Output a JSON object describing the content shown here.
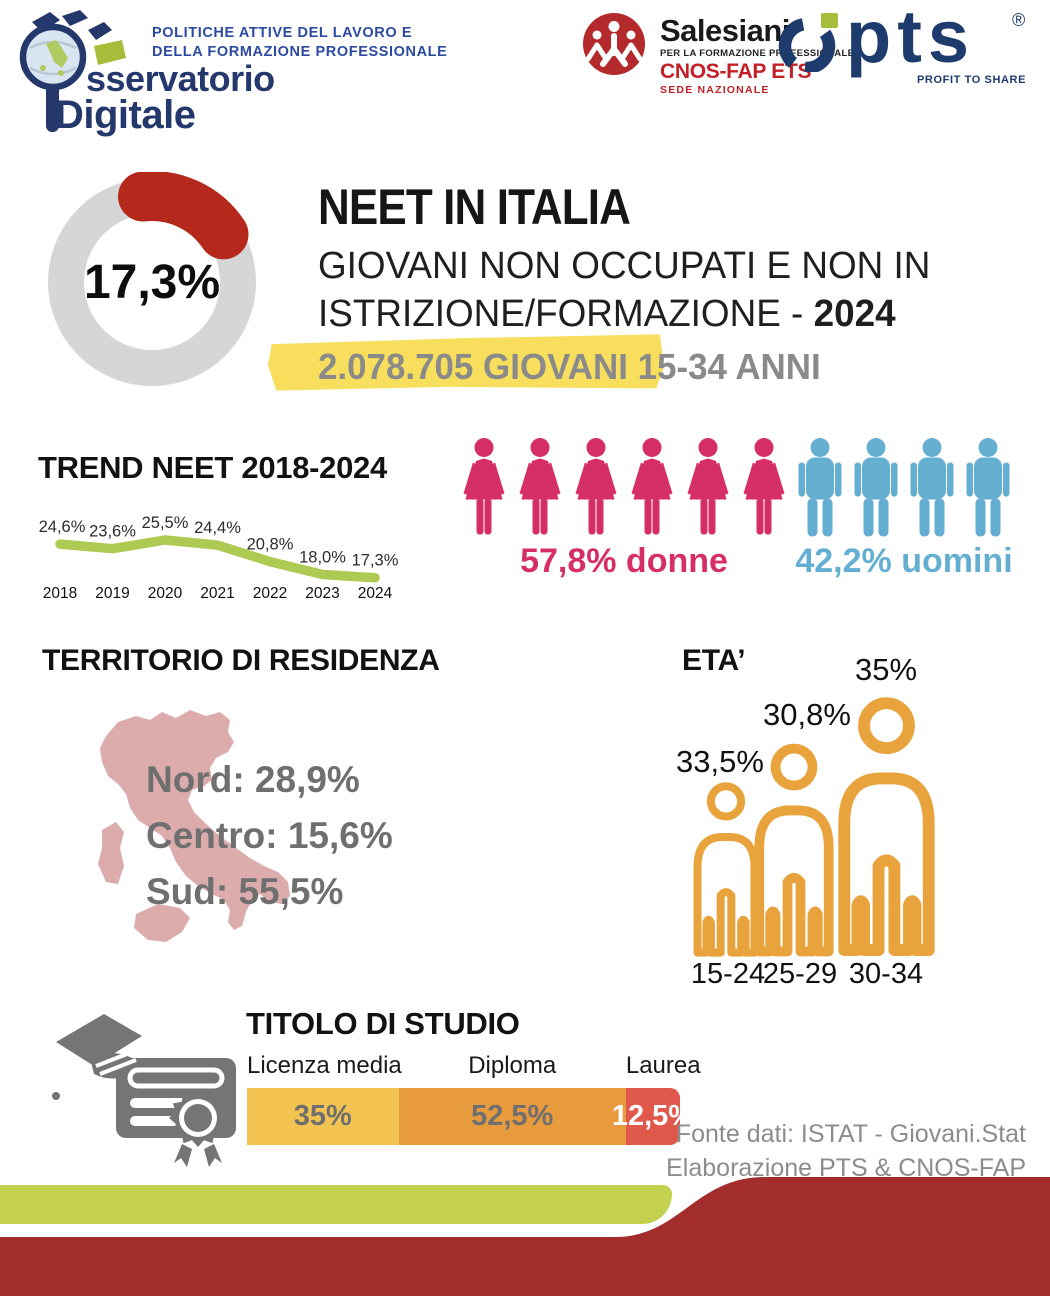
{
  "header": {
    "program_title": {
      "line1": "POLITICHE ATTIVE DEL LAVORO E",
      "line2": "DELLA FORMAZIONE PROFESSIONALE"
    },
    "osservatorio": {
      "line1": "sservatorio",
      "line2": "Digitale"
    },
    "salesiani": {
      "name": "Salesiani",
      "tagline": "PER LA FORMAZIONE PROFESSIONALE",
      "org": "CNOS-FAP ETS",
      "office": "SEDE NAZIONALE"
    },
    "pts": {
      "name": "pts",
      "registered": "®",
      "tagline": "PROFIT TO SHARE"
    }
  },
  "hero": {
    "title": "NEET IN ITALIA",
    "subtitle_line1": "GIOVANI NON OCCUPATI E NON IN",
    "subtitle_line2": "ISTRIZIONE/FORMAZIONE - ",
    "subtitle_year": "2024",
    "highlight": "2.078.705 GIOVANI",
    "highlight_suffix": " 15-34 ANNI"
  },
  "footer": {
    "line1": "Fonte dati: ISTAT - Giovani.Stat",
    "line2": "Elaborazione PTS & CNOS-FAP"
  },
  "chart_data": [
    {
      "type": "donut",
      "value": 17.3,
      "display": "17,3%",
      "arc_color": "#B5281C",
      "track_color": "#D6D6D6"
    },
    {
      "type": "line",
      "title": "TREND NEET 2018-2024",
      "x": [
        "2018",
        "2019",
        "2020",
        "2021",
        "2022",
        "2023",
        "2024"
      ],
      "values": [
        24.6,
        23.6,
        25.5,
        24.4,
        20.8,
        18.0,
        17.3
      ],
      "value_labels": [
        "24,6%",
        "23,6%",
        "25,5%",
        "24,4%",
        "20,8%",
        "18,0%",
        "17,3%"
      ],
      "line_color": "#AECA53",
      "ylim": [
        15,
        27
      ],
      "unit": "%",
      "grid": false
    },
    {
      "type": "pictogram",
      "series": [
        {
          "name": "donne",
          "icon": "female",
          "count": 6,
          "value": 57.8,
          "display": "57,8% donne",
          "color": "#D62E66"
        },
        {
          "name": "uomini",
          "icon": "male",
          "count": 4,
          "value": 42.2,
          "display": "42,2% uomini",
          "color": "#64AFD1"
        }
      ]
    },
    {
      "type": "map-stats",
      "title": "TERRITORIO DI RESIDENZA",
      "map_color": "#DCACAC",
      "items": [
        {
          "label": "Nord",
          "value": 28.9,
          "display": "Nord: 28,9%"
        },
        {
          "label": "Centro",
          "value": 15.6,
          "display": "Centro: 15,6%"
        },
        {
          "label": "Sud",
          "value": 55.5,
          "display": "Sud: 55,5%"
        }
      ]
    },
    {
      "type": "pictogram-scale",
      "title": "ETA’",
      "icon_color": "#E8A33D",
      "categories": [
        "15-24",
        "25-29",
        "30-34"
      ],
      "values": [
        33.5,
        30.8,
        35
      ],
      "value_labels": [
        "33,5%",
        "30,8%",
        "35%"
      ]
    },
    {
      "type": "stacked-bar",
      "title": "TITOLO DI STUDIO",
      "segments": [
        {
          "label": "Licenza media",
          "value": 35,
          "display": "35%",
          "color": "#F2C350",
          "text_color": "#6F6F6F"
        },
        {
          "label": "Diploma",
          "value": 52.5,
          "display": "52,5%",
          "color": "#E89B3C",
          "text_color": "#6F6F6F"
        },
        {
          "label": "Laurea",
          "value": 12.5,
          "display": "12,5%",
          "color": "#E0584B",
          "text_color": "#FFFFFF"
        }
      ]
    }
  ]
}
